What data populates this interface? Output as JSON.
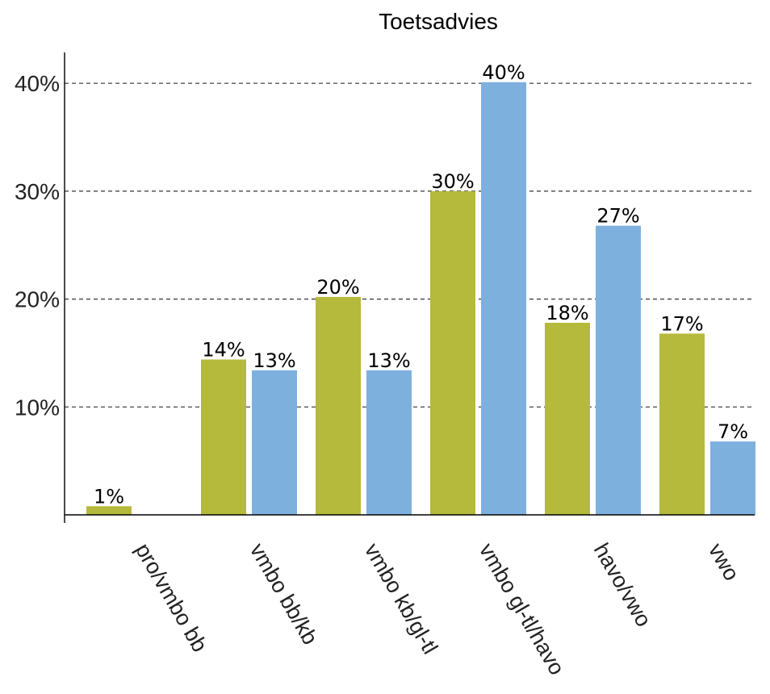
{
  "chart_data": {
    "type": "bar",
    "title": "Toetsadvies",
    "xlabel": "",
    "ylabel": "",
    "ylim": [
      0,
      43
    ],
    "yticks": [
      10,
      20,
      30,
      40
    ],
    "ytick_labels": [
      "10%",
      "20%",
      "30%",
      "40%"
    ],
    "grid": "horizontal dashed",
    "legend": "none",
    "categories": [
      "pro/vmbo bb",
      "vmbo bb/kb",
      "vmbo kb/gl-tl",
      "vmbo gl-tl/havo",
      "havo/vwo",
      "vwo"
    ],
    "series": [
      {
        "color": "#b5b93c",
        "values": [
          0.8,
          14.4,
          20.2,
          30.0,
          17.8,
          16.8
        ],
        "labels": [
          "1%",
          "14%",
          "20%",
          "30%",
          "18%",
          "17%"
        ]
      },
      {
        "color": "#7eb0de",
        "values": [
          null,
          13.4,
          13.4,
          40.1,
          26.8,
          6.8
        ],
        "labels": [
          "",
          "13%",
          "13%",
          "40%",
          "27%",
          "7%"
        ]
      }
    ]
  }
}
